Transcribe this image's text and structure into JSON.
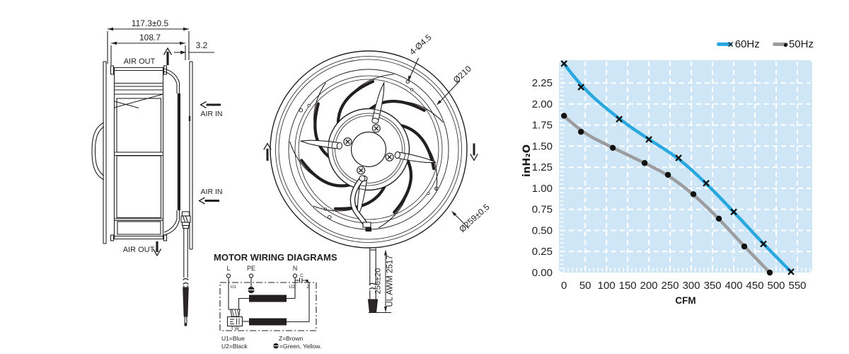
{
  "side_view": {
    "dim_total": "117.3±0.5",
    "dim_inner": "108.7",
    "dim_wall": "3.2",
    "air_out": "AIR OUT",
    "air_in": "AIR IN"
  },
  "front_view": {
    "dim_holes": "4-Ø4.5",
    "dim_impeller": "Ø210",
    "dim_outer": "Ø259±0.5",
    "dim_cable": "256±20",
    "cable_spec": "UL AWM 2517"
  },
  "wiring": {
    "title": "MOTOR WIRING DIAGRAMS",
    "t_l": "L",
    "t_pe": "PE",
    "t_n": "N",
    "t_c": "C",
    "u1": "U1",
    "u2": "U2",
    "z": "Z",
    "tw": "T W",
    "leg_u1": "U1=Blue",
    "leg_u2": "U2=Black",
    "leg_z": "Z=Brown",
    "leg_pe": "=Green, Yellow."
  },
  "chart_data": {
    "type": "line",
    "xlabel": "CFM",
    "ylabel": "inH₂O",
    "xlim": [
      -12,
      585
    ],
    "ylim": [
      0,
      2.52
    ],
    "xticks": [
      0,
      50,
      100,
      150,
      200,
      250,
      300,
      350,
      400,
      450,
      500,
      550
    ],
    "yticks": [
      0,
      0.25,
      0.5,
      0.75,
      1.0,
      1.25,
      1.5,
      1.75,
      2.0,
      2.25
    ],
    "grid": true,
    "legend_position": "top-right",
    "plot_bg": "#cfe6f7",
    "grid_color": "#ffffff",
    "series": [
      {
        "name": "60Hz",
        "color": "#29a8e0",
        "marker": "x",
        "legend_marker": "✕",
        "points": [
          [
            0,
            2.48
          ],
          [
            40,
            2.2
          ],
          [
            130,
            1.82
          ],
          [
            200,
            1.58
          ],
          [
            270,
            1.36
          ],
          [
            335,
            1.06
          ],
          [
            400,
            0.72
          ],
          [
            470,
            0.34
          ],
          [
            535,
            0.01
          ]
        ]
      },
      {
        "name": "50Hz",
        "color": "#9c9c9e",
        "marker": "dot",
        "legend_marker": "●",
        "points": [
          [
            0,
            1.86
          ],
          [
            40,
            1.67
          ],
          [
            115,
            1.48
          ],
          [
            190,
            1.3
          ],
          [
            245,
            1.16
          ],
          [
            305,
            0.93
          ],
          [
            365,
            0.64
          ],
          [
            425,
            0.31
          ],
          [
            485,
            0.0
          ]
        ]
      }
    ]
  }
}
